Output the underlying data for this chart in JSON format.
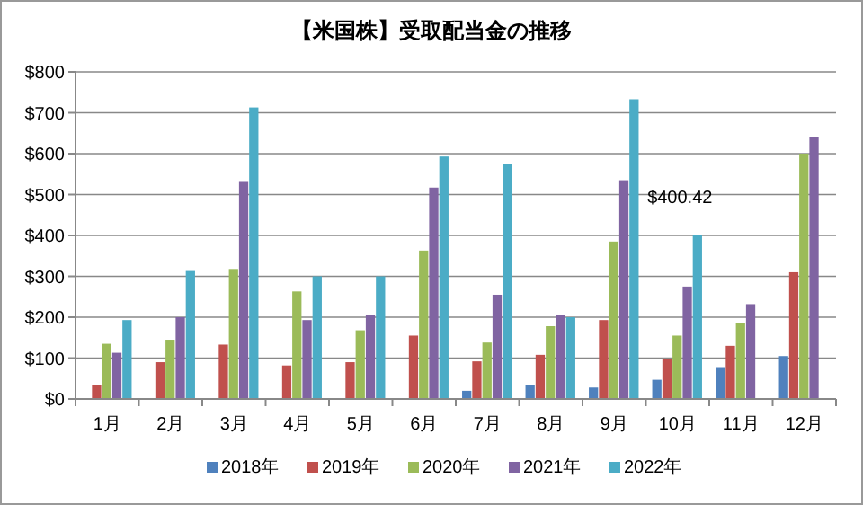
{
  "chart_data": {
    "type": "bar",
    "title": "【米国株】受取配当金の推移",
    "categories": [
      "1月",
      "2月",
      "3月",
      "4月",
      "5月",
      "6月",
      "7月",
      "8月",
      "9月",
      "10月",
      "11月",
      "12月"
    ],
    "series": [
      {
        "name": "2018年",
        "color": "#4f81bd",
        "values": [
          null,
          null,
          null,
          null,
          null,
          null,
          20,
          35,
          28,
          47,
          78,
          105
        ]
      },
      {
        "name": "2019年",
        "color": "#c0504d",
        "values": [
          35,
          90,
          133,
          82,
          90,
          155,
          92,
          108,
          193,
          98,
          130,
          310
        ]
      },
      {
        "name": "2020年",
        "color": "#9bbb59",
        "values": [
          135,
          145,
          318,
          263,
          168,
          363,
          138,
          178,
          385,
          155,
          185,
          600
        ]
      },
      {
        "name": "2021年",
        "color": "#8064a2",
        "values": [
          113,
          200,
          533,
          193,
          205,
          517,
          255,
          205,
          535,
          275,
          232,
          640
        ]
      },
      {
        "name": "2022年",
        "color": "#4bacc6",
        "values": [
          193,
          313,
          713,
          300,
          300,
          593,
          575,
          200,
          733,
          400.42,
          null,
          null
        ],
        "value_labels": [
          null,
          null,
          null,
          null,
          null,
          null,
          null,
          null,
          null,
          "$400.42",
          null,
          null
        ]
      }
    ],
    "ylim": [
      0,
      800
    ],
    "yticks": [
      {
        "value": 0,
        "label": "$0"
      },
      {
        "value": 100,
        "label": "$100"
      },
      {
        "value": 200,
        "label": "$200"
      },
      {
        "value": 300,
        "label": "$300"
      },
      {
        "value": 400,
        "label": "$400"
      },
      {
        "value": 500,
        "label": "$500"
      },
      {
        "value": 600,
        "label": "$600"
      },
      {
        "value": 700,
        "label": "$700"
      },
      {
        "value": 800,
        "label": "$800"
      }
    ],
    "grid": "y",
    "legend": "bottom"
  }
}
